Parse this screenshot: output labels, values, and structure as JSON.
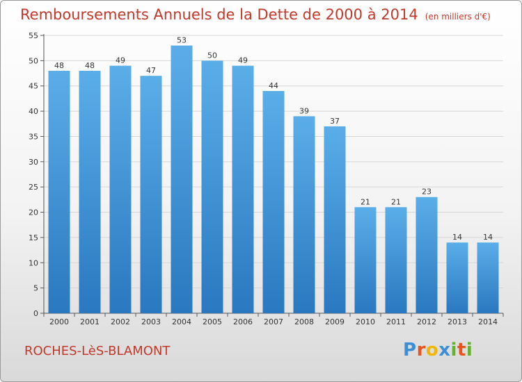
{
  "header": {
    "title": "Remboursements Annuels de la Dette de 2000 à 2014",
    "unit": "(en milliers d'€)"
  },
  "footer": {
    "commune": "ROCHES-LèS-BLAMONT",
    "logo_letters": [
      {
        "ch": "P",
        "color": "#3a8fd6"
      },
      {
        "ch": "r",
        "color": "#e8541e"
      },
      {
        "ch": "o",
        "color": "#f2b705"
      },
      {
        "ch": "x",
        "color": "#3a8fd6"
      },
      {
        "ch": "i",
        "color": "#63b32e"
      },
      {
        "ch": "t",
        "color": "#e8541e"
      },
      {
        "ch": "i",
        "color": "#63b32e"
      }
    ]
  },
  "chart_data": {
    "type": "bar",
    "categories": [
      "2000",
      "2001",
      "2002",
      "2003",
      "2004",
      "2005",
      "2006",
      "2007",
      "2008",
      "2009",
      "2010",
      "2011",
      "2012",
      "2013",
      "2014"
    ],
    "values": [
      48,
      48,
      49,
      47,
      53,
      50,
      49,
      44,
      39,
      37,
      21,
      21,
      23,
      14,
      14
    ],
    "ylim": [
      0,
      55
    ],
    "yticks": [
      0,
      5,
      10,
      15,
      20,
      25,
      30,
      35,
      40,
      45,
      50,
      55
    ],
    "grid": true,
    "bar_color_top": "#5aaee8",
    "bar_color_bottom": "#2a78c0",
    "data_labels": true
  }
}
